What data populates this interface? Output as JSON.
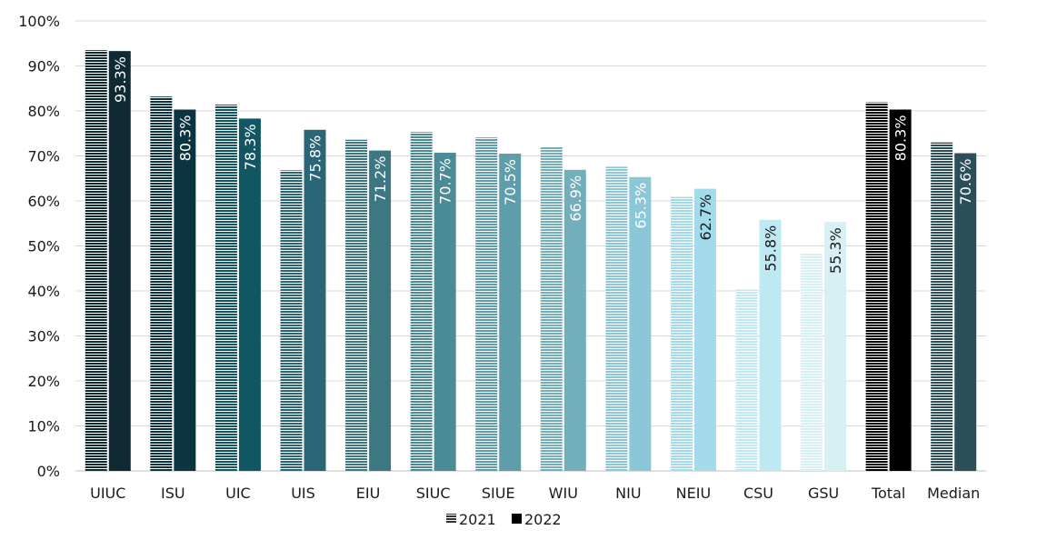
{
  "chart_data": {
    "type": "bar",
    "categories": [
      "UIUC",
      "ISU",
      "UIC",
      "UIS",
      "EIU",
      "SIUC",
      "SIUE",
      "WIU",
      "NIU",
      "NEIU",
      "CSU",
      "GSU",
      "Total",
      "Median"
    ],
    "series": [
      {
        "name": "2021",
        "values": [
          93.5,
          83.2,
          81.4,
          66.8,
          73.6,
          75.3,
          74.1,
          72.0,
          67.6,
          60.9,
          40.3,
          48.3,
          81.9,
          73.0
        ],
        "pattern": "horizontal-stripes"
      },
      {
        "name": "2022",
        "values": [
          93.3,
          80.3,
          78.3,
          75.8,
          71.2,
          70.7,
          70.5,
          66.9,
          65.3,
          62.7,
          55.8,
          55.3,
          80.3,
          70.6
        ],
        "pattern": "solid"
      }
    ],
    "data_labels_2022": [
      "93.3%",
      "80.3%",
      "78.3%",
      "75.8%",
      "71.2%",
      "70.7%",
      "70.5%",
      "66.9%",
      "65.3%",
      "62.7%",
      "55.8%",
      "55.3%",
      "80.3%",
      "70.6%"
    ],
    "colors": [
      "#0f2a33",
      "#0b3440",
      "#115662",
      "#2a6675",
      "#3e7782",
      "#4a8b96",
      "#5e9eaa",
      "#73aebd",
      "#8cc7d8",
      "#a4dbea",
      "#bee8f2",
      "#d6f0f3",
      "#000000",
      "#2b4e59"
    ],
    "yticks": [
      "0%",
      "10%",
      "20%",
      "30%",
      "40%",
      "50%",
      "60%",
      "70%",
      "80%",
      "90%",
      "100%"
    ],
    "ylim": [
      0,
      100
    ],
    "grid": true,
    "legend": {
      "position": "bottom-center",
      "items": [
        "2021",
        "2022"
      ]
    },
    "title": "",
    "xlabel": "",
    "ylabel": ""
  }
}
